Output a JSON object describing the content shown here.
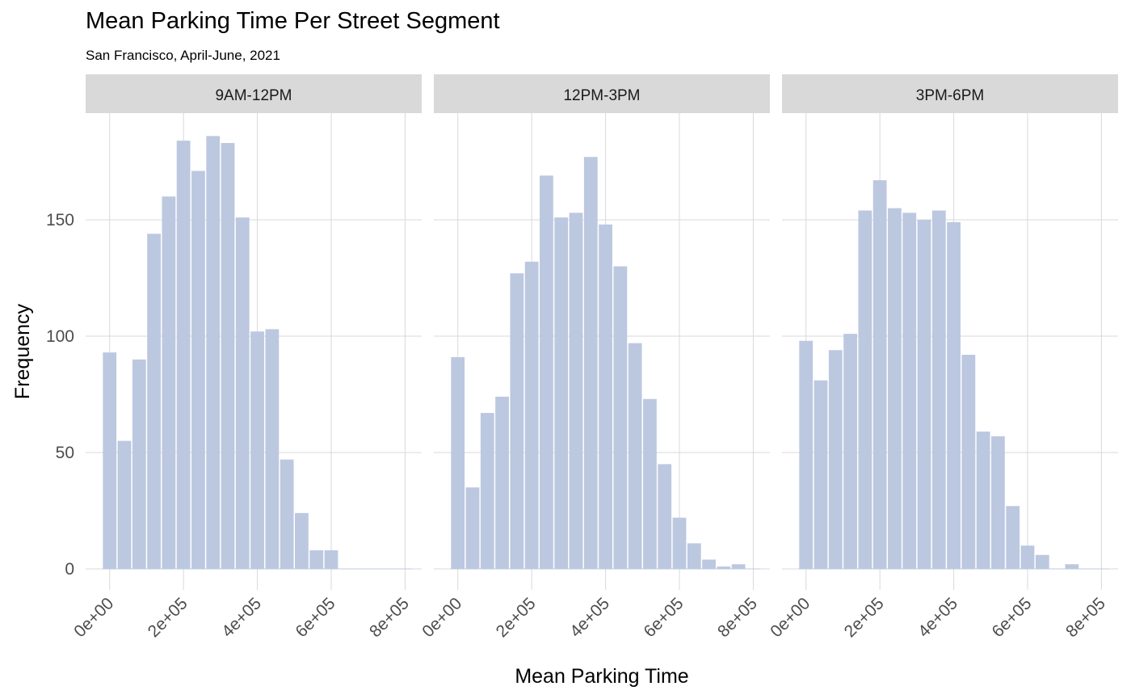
{
  "chart_data": {
    "type": "bar",
    "title": "Mean Parking Time Per Street Segment",
    "subtitle": "San Francisco, April-June, 2021",
    "xlabel": "Mean Parking Time",
    "ylabel": "Frequency",
    "x_ticks": [
      "0e+00",
      "2e+05",
      "4e+05",
      "6e+05",
      "8e+05"
    ],
    "x_tick_values": [
      0,
      200000,
      400000,
      600000,
      800000
    ],
    "y_ticks": [
      0,
      50,
      100,
      150
    ],
    "xlim": [
      -65000,
      845000
    ],
    "ylim": [
      0,
      195
    ],
    "bin_width": 40000,
    "bin_centers": [
      0,
      40000,
      80000,
      120000,
      160000,
      200000,
      240000,
      280000,
      320000,
      360000,
      400000,
      440000,
      480000,
      520000,
      560000,
      600000,
      640000,
      680000,
      720000,
      760000,
      800000
    ],
    "grid": true,
    "bar_color": "#bcc8e0",
    "strip_color": "#d9d9d9",
    "panels": [
      {
        "name": "9AM-12PM",
        "values": [
          93,
          55,
          90,
          144,
          160,
          184,
          171,
          186,
          183,
          151,
          102,
          103,
          47,
          24,
          8,
          8,
          0,
          0,
          0,
          0,
          0
        ]
      },
      {
        "name": "12PM-3PM",
        "values": [
          91,
          35,
          67,
          74,
          127,
          132,
          169,
          151,
          153,
          177,
          148,
          130,
          97,
          73,
          45,
          22,
          11,
          4,
          1,
          2,
          0
        ]
      },
      {
        "name": "3PM-6PM",
        "values": [
          98,
          81,
          94,
          101,
          154,
          167,
          155,
          153,
          150,
          154,
          149,
          92,
          59,
          57,
          27,
          10,
          6,
          0,
          2,
          0,
          0
        ]
      }
    ]
  }
}
